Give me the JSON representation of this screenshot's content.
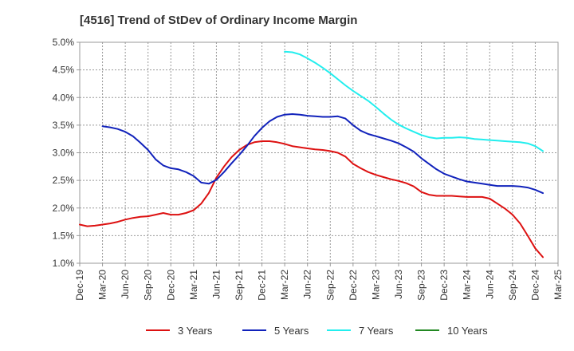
{
  "chart_data": {
    "type": "line",
    "title": "[4516]  Trend of StDev of Ordinary Income Margin",
    "xlabel": "",
    "ylabel": "",
    "x_ticks": [
      "Dec-19",
      "Mar-20",
      "Jun-20",
      "Sep-20",
      "Dec-20",
      "Mar-21",
      "Jun-21",
      "Sep-21",
      "Dec-21",
      "Mar-22",
      "Jun-22",
      "Sep-22",
      "Dec-22",
      "Mar-23",
      "Jun-23",
      "Sep-23",
      "Dec-23",
      "Mar-24",
      "Jun-24",
      "Sep-24",
      "Dec-24",
      "Mar-25"
    ],
    "y_ticks": [
      "1.0%",
      "1.5%",
      "2.0%",
      "2.5%",
      "3.0%",
      "3.5%",
      "4.0%",
      "4.5%",
      "5.0%"
    ],
    "ylim": [
      1.0,
      5.0
    ],
    "grid": true,
    "legend_position": "bottom",
    "series": [
      {
        "name": "3 Years",
        "color": "#dd1111",
        "points": [
          [
            "Dec-19",
            1.7
          ],
          [
            "Jan-20",
            1.67
          ],
          [
            "Feb-20",
            1.68
          ],
          [
            "Mar-20",
            1.7
          ],
          [
            "Apr-20",
            1.72
          ],
          [
            "May-20",
            1.75
          ],
          [
            "Jun-20",
            1.79
          ],
          [
            "Jul-20",
            1.82
          ],
          [
            "Aug-20",
            1.84
          ],
          [
            "Sep-20",
            1.85
          ],
          [
            "Oct-20",
            1.88
          ],
          [
            "Nov-20",
            1.91
          ],
          [
            "Dec-20",
            1.88
          ],
          [
            "Jan-21",
            1.88
          ],
          [
            "Feb-21",
            1.91
          ],
          [
            "Mar-21",
            1.96
          ],
          [
            "Apr-21",
            2.08
          ],
          [
            "May-21",
            2.27
          ],
          [
            "Jun-21",
            2.55
          ],
          [
            "Jul-21",
            2.75
          ],
          [
            "Aug-21",
            2.92
          ],
          [
            "Sep-21",
            3.05
          ],
          [
            "Oct-21",
            3.14
          ],
          [
            "Nov-21",
            3.19
          ],
          [
            "Dec-21",
            3.21
          ],
          [
            "Jan-22",
            3.21
          ],
          [
            "Feb-22",
            3.19
          ],
          [
            "Mar-22",
            3.16
          ],
          [
            "Apr-22",
            3.12
          ],
          [
            "May-22",
            3.1
          ],
          [
            "Jun-22",
            3.08
          ],
          [
            "Jul-22",
            3.06
          ],
          [
            "Aug-22",
            3.05
          ],
          [
            "Sep-22",
            3.03
          ],
          [
            "Oct-22",
            3.0
          ],
          [
            "Nov-22",
            2.93
          ],
          [
            "Dec-22",
            2.8
          ],
          [
            "Jan-23",
            2.72
          ],
          [
            "Feb-23",
            2.65
          ],
          [
            "Mar-23",
            2.6
          ],
          [
            "Apr-23",
            2.56
          ],
          [
            "May-23",
            2.52
          ],
          [
            "Jun-23",
            2.49
          ],
          [
            "Jul-23",
            2.45
          ],
          [
            "Aug-23",
            2.39
          ],
          [
            "Sep-23",
            2.29
          ],
          [
            "Oct-23",
            2.24
          ],
          [
            "Nov-23",
            2.22
          ],
          [
            "Dec-23",
            2.22
          ],
          [
            "Jan-24",
            2.22
          ],
          [
            "Feb-24",
            2.21
          ],
          [
            "Mar-24",
            2.2
          ],
          [
            "Apr-24",
            2.2
          ],
          [
            "May-24",
            2.2
          ],
          [
            "Jun-24",
            2.17
          ],
          [
            "Jul-24",
            2.08
          ],
          [
            "Aug-24",
            1.99
          ],
          [
            "Sep-24",
            1.88
          ],
          [
            "Oct-24",
            1.72
          ],
          [
            "Nov-24",
            1.5
          ],
          [
            "Dec-24",
            1.27
          ],
          [
            "Jan-25",
            1.11
          ]
        ]
      },
      {
        "name": "5 Years",
        "color": "#1122bb",
        "points": [
          [
            "Mar-20",
            3.48
          ],
          [
            "Apr-20",
            3.46
          ],
          [
            "May-20",
            3.43
          ],
          [
            "Jun-20",
            3.38
          ],
          [
            "Jul-20",
            3.3
          ],
          [
            "Aug-20",
            3.18
          ],
          [
            "Sep-20",
            3.05
          ],
          [
            "Oct-20",
            2.88
          ],
          [
            "Nov-20",
            2.77
          ],
          [
            "Dec-20",
            2.72
          ],
          [
            "Jan-21",
            2.7
          ],
          [
            "Feb-21",
            2.65
          ],
          [
            "Mar-21",
            2.58
          ],
          [
            "Apr-21",
            2.46
          ],
          [
            "May-21",
            2.44
          ],
          [
            "Jun-21",
            2.51
          ],
          [
            "Jul-21",
            2.65
          ],
          [
            "Aug-21",
            2.81
          ],
          [
            "Sep-21",
            2.96
          ],
          [
            "Oct-21",
            3.12
          ],
          [
            "Nov-21",
            3.3
          ],
          [
            "Dec-21",
            3.45
          ],
          [
            "Jan-22",
            3.57
          ],
          [
            "Feb-22",
            3.65
          ],
          [
            "Mar-22",
            3.69
          ],
          [
            "Apr-22",
            3.7
          ],
          [
            "May-22",
            3.69
          ],
          [
            "Jun-22",
            3.67
          ],
          [
            "Jul-22",
            3.66
          ],
          [
            "Aug-22",
            3.65
          ],
          [
            "Sep-22",
            3.65
          ],
          [
            "Oct-22",
            3.66
          ],
          [
            "Nov-22",
            3.62
          ],
          [
            "Dec-22",
            3.5
          ],
          [
            "Jan-23",
            3.4
          ],
          [
            "Feb-23",
            3.34
          ],
          [
            "Mar-23",
            3.3
          ],
          [
            "Apr-23",
            3.26
          ],
          [
            "May-23",
            3.22
          ],
          [
            "Jun-23",
            3.17
          ],
          [
            "Jul-23",
            3.1
          ],
          [
            "Aug-23",
            3.02
          ],
          [
            "Sep-23",
            2.9
          ],
          [
            "Oct-23",
            2.8
          ],
          [
            "Nov-23",
            2.7
          ],
          [
            "Dec-23",
            2.62
          ],
          [
            "Jan-24",
            2.57
          ],
          [
            "Feb-24",
            2.52
          ],
          [
            "Mar-24",
            2.48
          ],
          [
            "Apr-24",
            2.46
          ],
          [
            "May-24",
            2.44
          ],
          [
            "Jun-24",
            2.42
          ],
          [
            "Jul-24",
            2.4
          ],
          [
            "Aug-24",
            2.4
          ],
          [
            "Sep-24",
            2.4
          ],
          [
            "Oct-24",
            2.39
          ],
          [
            "Nov-24",
            2.37
          ],
          [
            "Dec-24",
            2.33
          ],
          [
            "Jan-25",
            2.27
          ]
        ]
      },
      {
        "name": "7 Years",
        "color": "#22eeee",
        "points": [
          [
            "Mar-22",
            4.83
          ],
          [
            "Apr-22",
            4.82
          ],
          [
            "May-22",
            4.78
          ],
          [
            "Jun-22",
            4.71
          ],
          [
            "Jul-22",
            4.63
          ],
          [
            "Aug-22",
            4.54
          ],
          [
            "Sep-22",
            4.44
          ],
          [
            "Oct-22",
            4.33
          ],
          [
            "Nov-22",
            4.22
          ],
          [
            "Dec-22",
            4.12
          ],
          [
            "Jan-23",
            4.03
          ],
          [
            "Feb-23",
            3.94
          ],
          [
            "Mar-23",
            3.83
          ],
          [
            "Apr-23",
            3.71
          ],
          [
            "May-23",
            3.6
          ],
          [
            "Jun-23",
            3.51
          ],
          [
            "Jul-23",
            3.44
          ],
          [
            "Aug-23",
            3.38
          ],
          [
            "Sep-23",
            3.32
          ],
          [
            "Oct-23",
            3.28
          ],
          [
            "Nov-23",
            3.26
          ],
          [
            "Dec-23",
            3.27
          ],
          [
            "Jan-24",
            3.27
          ],
          [
            "Feb-24",
            3.28
          ],
          [
            "Mar-24",
            3.27
          ],
          [
            "Apr-24",
            3.25
          ],
          [
            "May-24",
            3.24
          ],
          [
            "Jun-24",
            3.23
          ],
          [
            "Jul-24",
            3.22
          ],
          [
            "Aug-24",
            3.21
          ],
          [
            "Sep-24",
            3.2
          ],
          [
            "Oct-24",
            3.19
          ],
          [
            "Nov-24",
            3.17
          ],
          [
            "Dec-24",
            3.12
          ],
          [
            "Jan-25",
            3.03
          ]
        ]
      },
      {
        "name": "10 Years",
        "color": "#228822",
        "points": []
      }
    ]
  }
}
